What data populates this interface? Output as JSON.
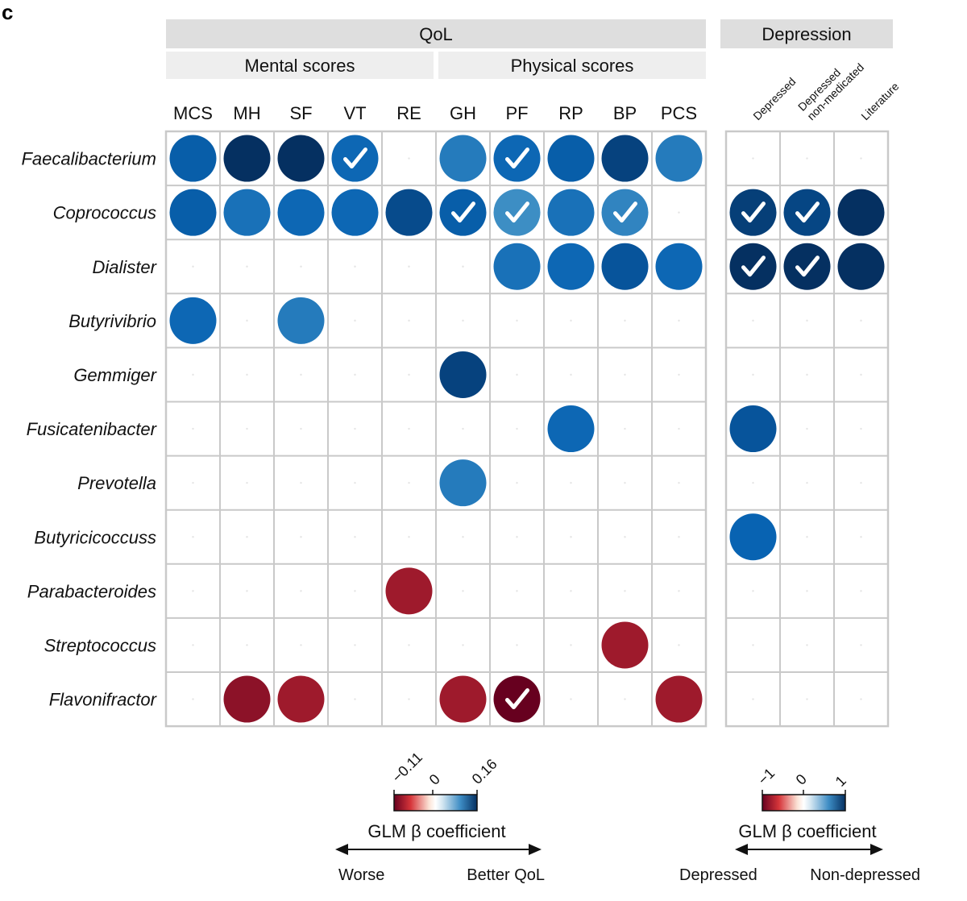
{
  "panel_letter": "c",
  "chart_data": {
    "type": "heatmap",
    "rows": [
      "Faecalibacterium",
      "Coprococcus",
      "Dialister",
      "Butyrivibrio",
      "Gemmiger",
      "Fusicatenibacter",
      "Prevotella",
      "Butyricicoccuss",
      "Parabacteroides",
      "Streptococcus",
      "Flavonifractor"
    ],
    "qol": {
      "header": "QoL",
      "groups": [
        {
          "label": "Mental scores",
          "columns": [
            "MCS",
            "MH",
            "SF",
            "VT",
            "RE"
          ]
        },
        {
          "label": "Physical scores",
          "columns": [
            "GH",
            "PF",
            "RP",
            "BP",
            "PCS"
          ]
        }
      ],
      "columns": [
        "MCS",
        "MH",
        "SF",
        "VT",
        "RE",
        "GH",
        "PF",
        "RP",
        "BP",
        "PCS"
      ],
      "values": [
        [
          0.11,
          0.16,
          0.16,
          0.1,
          null,
          0.08,
          0.1,
          0.11,
          0.14,
          0.08
        ],
        [
          0.11,
          0.09,
          0.1,
          0.1,
          0.13,
          0.11,
          0.06,
          0.09,
          0.07,
          null
        ],
        [
          null,
          null,
          null,
          null,
          null,
          null,
          0.09,
          0.1,
          0.12,
          0.1
        ],
        [
          0.1,
          null,
          0.08,
          null,
          null,
          null,
          null,
          null,
          null,
          null
        ],
        [
          null,
          null,
          null,
          null,
          null,
          0.14,
          null,
          null,
          null,
          null
        ],
        [
          null,
          null,
          null,
          null,
          null,
          null,
          null,
          0.1,
          null,
          null
        ],
        [
          null,
          null,
          null,
          null,
          null,
          0.08,
          null,
          null,
          null,
          null
        ],
        [
          null,
          null,
          null,
          null,
          null,
          null,
          null,
          null,
          null,
          null
        ],
        [
          null,
          null,
          null,
          null,
          -0.08,
          null,
          null,
          null,
          null,
          null
        ],
        [
          null,
          null,
          null,
          null,
          null,
          null,
          null,
          null,
          -0.08,
          null
        ],
        [
          null,
          -0.09,
          -0.08,
          null,
          null,
          -0.08,
          -0.11,
          null,
          null,
          -0.08
        ]
      ],
      "checks": [
        [
          0,
          3
        ],
        [
          0,
          6
        ],
        [
          1,
          5
        ],
        [
          1,
          6
        ],
        [
          1,
          8
        ],
        [
          10,
          6
        ]
      ],
      "colorbar": {
        "ticks": [
          "−0.11",
          "0",
          "0.16"
        ],
        "min": -0.11,
        "max": 0.16,
        "title": "GLM β coefficient"
      },
      "arrow": {
        "left": "Worse",
        "right": "Better QoL"
      }
    },
    "depression": {
      "header": "Depression",
      "columns": [
        "Depressed",
        "Depressed non-medicated",
        "Literature"
      ],
      "column_lines": [
        [
          "Depressed"
        ],
        [
          "Depressed",
          "non-medicated"
        ],
        [
          "Literature"
        ]
      ],
      "values": [
        [
          null,
          null,
          null
        ],
        [
          0.9,
          0.85,
          1.0
        ],
        [
          1.0,
          1.0,
          1.0
        ],
        [
          null,
          null,
          null
        ],
        [
          null,
          null,
          null
        ],
        [
          0.75,
          null,
          null
        ],
        [
          null,
          null,
          null
        ],
        [
          0.65,
          null,
          null
        ],
        [
          null,
          null,
          null
        ],
        [
          null,
          null,
          null
        ],
        [
          null,
          null,
          null
        ]
      ],
      "checks": [
        [
          1,
          0
        ],
        [
          1,
          1
        ],
        [
          2,
          0
        ],
        [
          2,
          1
        ]
      ],
      "colorbar": {
        "ticks": [
          "−1",
          "0",
          "1"
        ],
        "min": -1,
        "max": 1,
        "title": "GLM β coefficient"
      },
      "arrow": {
        "left": "Depressed",
        "right": "Non-depressed"
      }
    }
  },
  "colors": {
    "header_dark": "#dedede",
    "header_light": "#eeeeee",
    "grid": "#c9c9c9",
    "check": "#ffffff"
  }
}
